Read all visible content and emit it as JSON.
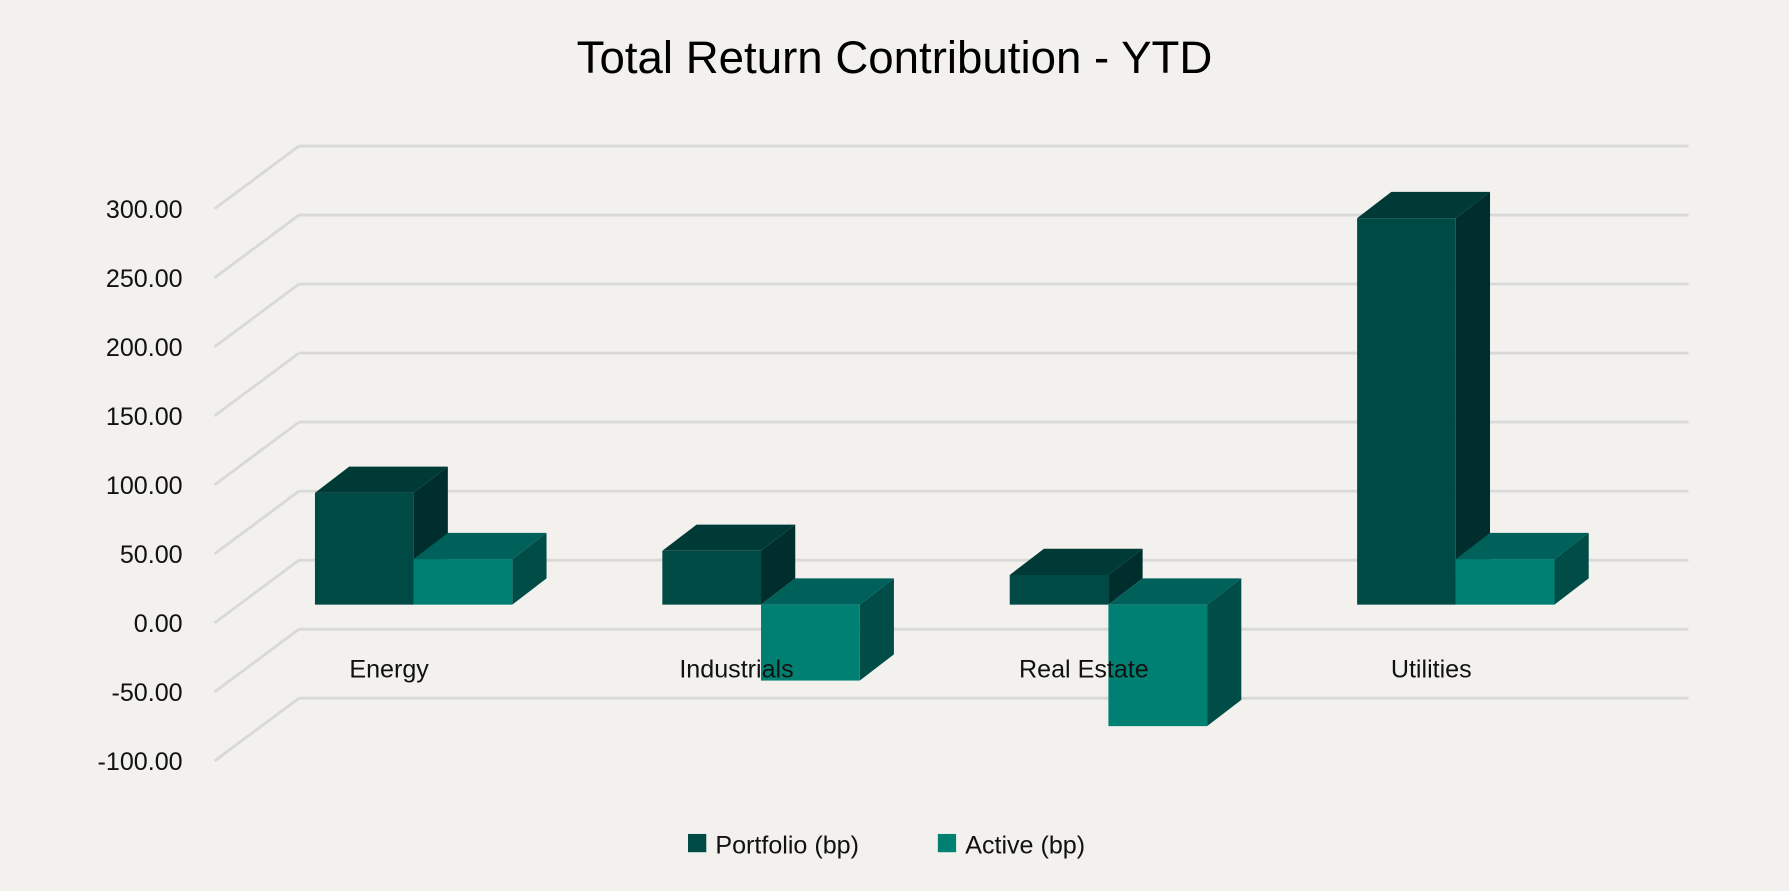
{
  "chart_data": {
    "type": "bar",
    "style": "3d-clustered-column",
    "title": "Total Return Contribution - YTD",
    "xlabel": "",
    "ylabel": "",
    "categories": [
      "Energy",
      "Industrials",
      "Real Estate",
      "Utilities"
    ],
    "series": [
      {
        "name": "Portfolio (bp)",
        "values": [
          81,
          39,
          21.5,
          280
        ],
        "color": "#004a46"
      },
      {
        "name": "Active (bp)",
        "values": [
          33,
          -55,
          -88,
          33
        ],
        "color": "#008073"
      }
    ],
    "ylim": [
      -100,
      300
    ],
    "yticks": [
      "-100.00",
      "-50.00",
      "0.00",
      "50.00",
      "100.00",
      "150.00",
      "200.00",
      "250.00",
      "300.00"
    ],
    "grid": true,
    "legend": "bottom",
    "background": "#f2f1ee"
  }
}
